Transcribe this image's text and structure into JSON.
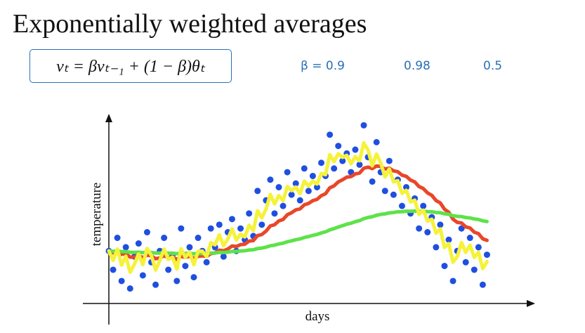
{
  "slide": {
    "title": "Exponentially weighted averages",
    "formula": "vₜ = βvₜ₋₁ + (1 − β)θₜ",
    "annotations": [
      "β = 0.9",
      "0.98",
      "0.5"
    ]
  },
  "chart_data": {
    "type": "scatter",
    "xlabel": "days",
    "ylabel": "temperature",
    "xlim": [
      0,
      200
    ],
    "ylim": [
      0,
      100
    ],
    "grid": false,
    "points": {
      "name": "",
      "color": "#1f4fe0",
      "x": [
        0,
        2,
        4,
        6,
        8,
        10,
        12,
        14,
        16,
        18,
        20,
        22,
        24,
        26,
        28,
        30,
        32,
        34,
        36,
        38,
        40,
        42,
        44,
        46,
        48,
        50,
        52,
        54,
        56,
        58,
        60,
        62,
        64,
        66,
        68,
        70,
        72,
        74,
        76,
        78,
        80,
        82,
        84,
        86,
        88,
        90,
        92,
        94,
        96,
        98,
        100,
        102,
        104,
        106,
        108,
        110,
        112,
        114,
        116,
        118,
        120,
        122,
        124,
        126,
        128,
        130,
        132,
        134,
        136,
        138,
        140,
        142,
        144,
        146,
        148,
        150,
        152,
        154,
        156,
        158,
        160,
        162,
        164,
        166,
        168,
        170,
        172,
        174,
        176,
        178
      ],
      "y": [
        28,
        18,
        35,
        12,
        30,
        8,
        25,
        32,
        15,
        38,
        22,
        10,
        28,
        35,
        18,
        26,
        12,
        40,
        20,
        30,
        14,
        35,
        28,
        22,
        40,
        30,
        42,
        25,
        38,
        45,
        28,
        40,
        34,
        48,
        36,
        60,
        42,
        55,
        66,
        48,
        62,
        52,
        70,
        58,
        64,
        55,
        72,
        60,
        68,
        62,
        75,
        68,
        90,
        72,
        84,
        76,
        80,
        70,
        82,
        74,
        95,
        78,
        65,
        86,
        70,
        60,
        76,
        58,
        66,
        52,
        62,
        48,
        56,
        40,
        52,
        38,
        46,
        30,
        42,
        20,
        34,
        12,
        28,
        40,
        22,
        35,
        18,
        30,
        10,
        26
      ]
    },
    "series": [
      {
        "beta": 0.9,
        "color": "#e8472a"
      },
      {
        "beta": 0.98,
        "color": "#5ee24a"
      },
      {
        "beta": 0.5,
        "color": "#f5f23a"
      }
    ]
  }
}
